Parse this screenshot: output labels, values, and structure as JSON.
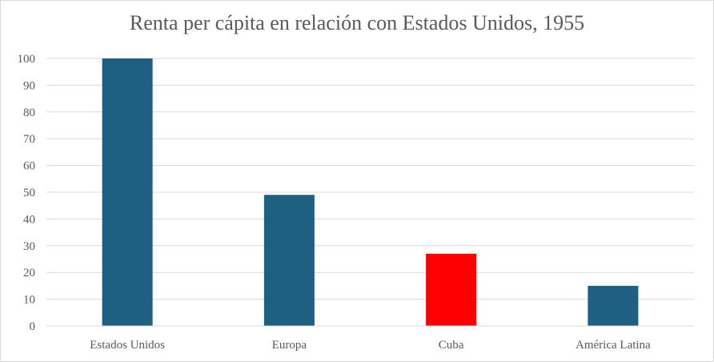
{
  "chart_data": {
    "type": "bar",
    "title": "Renta per cápita en relación con Estados Unidos, 1955",
    "categories": [
      "Estados Unidos",
      "Europa",
      "Cuba",
      "América Latina"
    ],
    "values": [
      100,
      49,
      27,
      15
    ],
    "bar_colors": [
      "#1f5f82",
      "#1f5f82",
      "#ff0000",
      "#1f5f82"
    ],
    "ylim": [
      0,
      100
    ],
    "yticks": [
      0,
      10,
      20,
      30,
      40,
      50,
      60,
      70,
      80,
      90,
      100
    ],
    "grid": true,
    "xlabel": "",
    "ylabel": ""
  }
}
